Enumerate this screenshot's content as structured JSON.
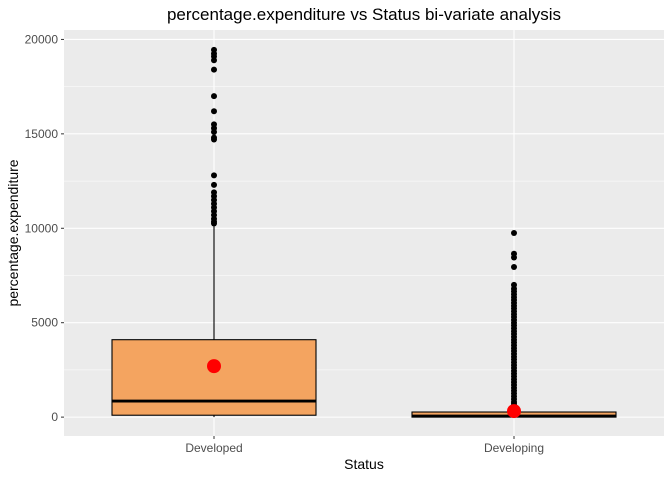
{
  "chart_data": {
    "type": "box",
    "title": "percentage.expenditure vs Status bi-variate analysis",
    "xlabel": "Status",
    "ylabel": "percentage.expenditure",
    "ylim": [
      -1000,
      20500
    ],
    "yticks": [
      0,
      5000,
      10000,
      15000,
      20000
    ],
    "grid": true,
    "colors": {
      "box_fill": "#f4a460",
      "mean_marker": "#ff0000",
      "panel": "#ebebeb",
      "grid": "#ffffff",
      "outlier": "#000000"
    },
    "categories": [
      "Developed",
      "Developing"
    ],
    "boxes": [
      {
        "category": "Developed",
        "q1": 100,
        "median": 850,
        "q3": 4100,
        "whisker_low": 0,
        "whisker_high": 10100,
        "mean": 2700,
        "outliers": [
          19450,
          19250,
          19100,
          18900,
          18400,
          17000,
          16200,
          15500,
          15300,
          15100,
          14800,
          14700,
          12800,
          12300,
          11900,
          11700,
          11500,
          11300,
          11100,
          10900,
          10700,
          10500,
          10350,
          10250
        ]
      },
      {
        "category": "Developing",
        "q1": 0,
        "median": 60,
        "q3": 270,
        "whisker_low": 0,
        "whisker_high": 620,
        "mean": 320,
        "outliers": [
          9750,
          8650,
          8450,
          7950,
          7000,
          6800,
          6650,
          6500,
          6350,
          6200,
          6050,
          5900,
          5750,
          5600,
          5450,
          5300,
          5150,
          5000,
          4850,
          4700,
          4550,
          4400,
          4250,
          4100,
          3950,
          3800,
          3650,
          3500,
          3350,
          3200,
          3050,
          2900,
          2750,
          2600,
          2450,
          2300,
          2150,
          2000,
          1850,
          1700,
          1550,
          1400,
          1250,
          1100,
          950,
          800,
          700
        ]
      }
    ]
  }
}
